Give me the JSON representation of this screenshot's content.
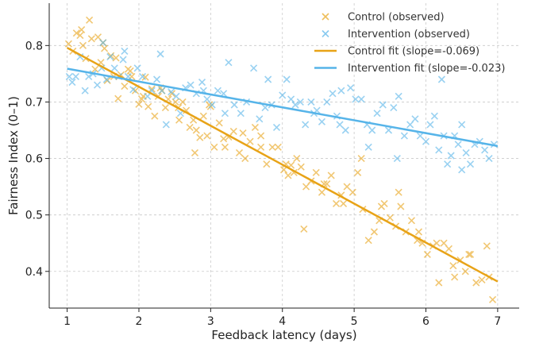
{
  "chart_data": {
    "type": "scatter",
    "title": "",
    "xlabel": "Feedback latency (days)",
    "ylabel": "Fairness Index (0–1)",
    "xlim": [
      0.75,
      7.3
    ],
    "ylim": [
      0.335,
      0.875
    ],
    "xticks": [
      1,
      2,
      3,
      4,
      5,
      6,
      7
    ],
    "yticks": [
      0.4,
      0.5,
      0.6,
      0.7,
      0.8
    ],
    "xtick_labels": [
      "1",
      "2",
      "3",
      "4",
      "5",
      "6",
      "7"
    ],
    "ytick_labels": [
      "0.4",
      "0.5",
      "0.6",
      "0.7",
      "0.8"
    ],
    "grid": true,
    "legend_position": "top-right",
    "colors": {
      "control": "#E8A317",
      "intervention": "#56B4E9"
    },
    "series": [
      {
        "name": "Control (observed)",
        "kind": "scatter",
        "color": "#E8A317",
        "x": [
          1.02,
          1.08,
          1.13,
          1.18,
          1.22,
          1.26,
          1.31,
          1.34,
          1.39,
          1.43,
          1.47,
          1.52,
          1.56,
          1.61,
          1.65,
          1.71,
          1.75,
          1.8,
          1.85,
          1.9,
          1.95,
          2.0,
          2.04,
          2.09,
          2.13,
          2.18,
          2.22,
          2.27,
          2.32,
          2.37,
          2.41,
          2.46,
          2.51,
          2.56,
          2.61,
          2.66,
          2.71,
          2.76,
          2.8,
          2.85,
          2.9,
          2.95,
          3.0,
          3.05,
          3.12,
          3.18,
          3.25,
          3.32,
          3.4,
          3.48,
          3.55,
          3.62,
          3.7,
          3.78,
          3.86,
          3.94,
          4.02,
          4.08,
          4.12,
          4.16,
          4.2,
          4.26,
          4.33,
          4.4,
          4.47,
          4.55,
          4.62,
          4.68,
          4.75,
          4.82,
          4.9,
          4.98,
          5.05,
          5.12,
          5.2,
          5.28,
          5.35,
          5.42,
          5.5,
          5.58,
          5.65,
          5.72,
          5.8,
          5.88,
          5.95,
          6.02,
          6.1,
          6.18,
          6.25,
          6.32,
          6.4,
          6.48,
          6.55,
          6.62,
          6.7,
          6.78,
          6.85,
          6.93,
          1.2,
          1.5,
          1.68,
          1.88,
          2.06,
          2.3,
          2.55,
          2.78,
          2.98,
          3.2,
          3.45,
          3.7,
          4.05,
          4.3,
          4.58,
          4.85,
          5.1,
          5.38,
          5.62,
          5.9,
          6.15,
          6.38,
          6.6,
          6.88
        ],
        "y": [
          0.803,
          0.79,
          0.822,
          0.818,
          0.8,
          0.777,
          0.845,
          0.812,
          0.758,
          0.815,
          0.77,
          0.795,
          0.738,
          0.782,
          0.745,
          0.706,
          0.748,
          0.728,
          0.758,
          0.745,
          0.72,
          0.696,
          0.705,
          0.744,
          0.692,
          0.723,
          0.675,
          0.71,
          0.72,
          0.69,
          0.705,
          0.715,
          0.7,
          0.668,
          0.7,
          0.685,
          0.655,
          0.668,
          0.65,
          0.637,
          0.675,
          0.64,
          0.692,
          0.62,
          0.663,
          0.635,
          0.638,
          0.648,
          0.61,
          0.6,
          0.63,
          0.655,
          0.64,
          0.59,
          0.62,
          0.62,
          0.58,
          0.57,
          0.588,
          0.575,
          0.6,
          0.585,
          0.55,
          0.56,
          0.575,
          0.54,
          0.555,
          0.57,
          0.52,
          0.535,
          0.55,
          0.54,
          0.575,
          0.51,
          0.455,
          0.47,
          0.49,
          0.52,
          0.495,
          0.48,
          0.515,
          0.47,
          0.49,
          0.455,
          0.45,
          0.43,
          0.445,
          0.38,
          0.45,
          0.44,
          0.39,
          0.42,
          0.4,
          0.43,
          0.38,
          0.385,
          0.445,
          0.35,
          0.828,
          0.805,
          0.778,
          0.755,
          0.71,
          0.725,
          0.69,
          0.61,
          0.695,
          0.62,
          0.645,
          0.62,
          0.59,
          0.475,
          0.555,
          0.52,
          0.6,
          0.515,
          0.54,
          0.47,
          0.45,
          0.41,
          0.43,
          0.39
        ]
      },
      {
        "name": "Intervention (observed)",
        "kind": "scatter",
        "color": "#56B4E9",
        "x": [
          1.03,
          1.07,
          1.12,
          1.18,
          1.25,
          1.3,
          1.36,
          1.42,
          1.48,
          1.55,
          1.6,
          1.66,
          1.72,
          1.78,
          1.85,
          1.92,
          1.98,
          2.05,
          2.12,
          2.18,
          2.25,
          2.32,
          2.38,
          2.45,
          2.52,
          2.58,
          2.65,
          2.72,
          2.8,
          2.88,
          2.95,
          3.02,
          3.1,
          3.18,
          3.25,
          3.33,
          3.42,
          3.5,
          3.6,
          3.68,
          3.76,
          3.85,
          3.92,
          4.0,
          4.06,
          4.12,
          4.18,
          4.25,
          4.32,
          4.4,
          4.48,
          4.55,
          4.62,
          4.7,
          4.76,
          4.82,
          4.88,
          4.95,
          5.02,
          5.1,
          5.18,
          5.25,
          5.32,
          5.4,
          5.48,
          5.55,
          5.62,
          5.7,
          5.78,
          5.85,
          5.92,
          6.0,
          6.06,
          6.12,
          6.18,
          6.25,
          6.3,
          6.35,
          6.4,
          6.45,
          6.5,
          6.56,
          6.62,
          6.68,
          6.75,
          6.82,
          6.88,
          6.95,
          1.5,
          1.8,
          2.3,
          2.9,
          3.2,
          3.8,
          4.44,
          4.8,
          5.2,
          5.6,
          6.22,
          6.5
        ],
        "y": [
          0.745,
          0.735,
          0.745,
          0.78,
          0.72,
          0.745,
          0.75,
          0.73,
          0.76,
          0.74,
          0.78,
          0.76,
          0.745,
          0.775,
          0.745,
          0.722,
          0.76,
          0.745,
          0.71,
          0.72,
          0.74,
          0.72,
          0.66,
          0.718,
          0.71,
          0.68,
          0.725,
          0.73,
          0.715,
          0.735,
          0.705,
          0.695,
          0.72,
          0.715,
          0.77,
          0.695,
          0.68,
          0.7,
          0.76,
          0.67,
          0.69,
          0.695,
          0.655,
          0.712,
          0.74,
          0.705,
          0.695,
          0.7,
          0.66,
          0.7,
          0.685,
          0.665,
          0.7,
          0.715,
          0.675,
          0.72,
          0.65,
          0.725,
          0.705,
          0.705,
          0.66,
          0.65,
          0.68,
          0.695,
          0.65,
          0.69,
          0.71,
          0.64,
          0.66,
          0.67,
          0.64,
          0.63,
          0.66,
          0.675,
          0.615,
          0.64,
          0.59,
          0.605,
          0.64,
          0.625,
          0.66,
          0.61,
          0.59,
          0.625,
          0.63,
          0.615,
          0.6,
          0.625,
          0.805,
          0.79,
          0.785,
          0.72,
          0.68,
          0.74,
          0.68,
          0.66,
          0.62,
          0.6,
          0.74,
          0.58
        ]
      },
      {
        "name": "Control fit (slope=-0.069)",
        "kind": "line",
        "color": "#E8A317",
        "x": [
          1,
          7
        ],
        "y": [
          0.796,
          0.382
        ]
      },
      {
        "name": "Intervention fit (slope=-0.023)",
        "kind": "line",
        "color": "#56B4E9",
        "x": [
          1,
          7
        ],
        "y": [
          0.759,
          0.622
        ]
      }
    ]
  }
}
